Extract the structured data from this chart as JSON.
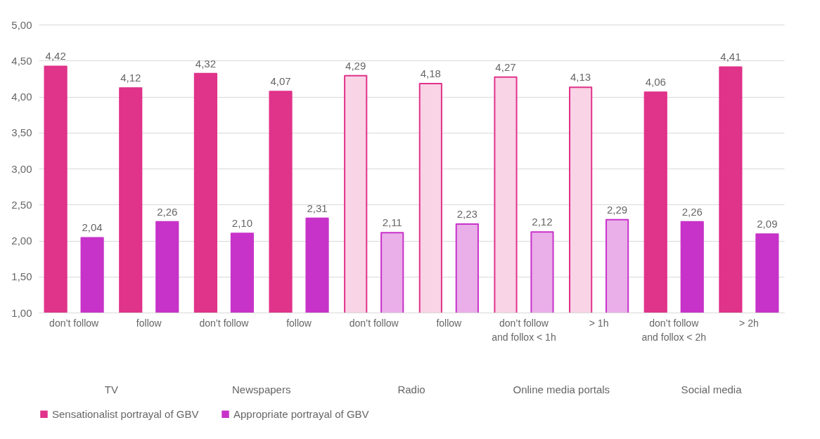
{
  "chart_data": {
    "type": "bar",
    "categories": [
      "don’t follow",
      "follow",
      "don’t follow",
      "follow",
      "don’t follow",
      "follow",
      "don’t follow\nand follox < 1h",
      "> 1h",
      "don’t follow\nand follox < 2h",
      "> 2h"
    ],
    "series": [
      {
        "name": "Sensationalist portrayal of GBV",
        "color": "#e0338a",
        "colors": [
          "#e0338a",
          "#e0338a",
          "#e0338a",
          "#e0338a",
          "#f9d3e6",
          "#f9d3e6",
          "#f9d3e6",
          "#f9d3e6",
          "#e0338a",
          "#e0338a"
        ],
        "values": [
          4.42,
          4.12,
          4.32,
          4.07,
          4.29,
          4.18,
          4.27,
          4.13,
          4.06,
          4.41
        ],
        "value_labels": [
          "4,42",
          "4,12",
          "4,32",
          "4,07",
          "4,29",
          "4,18",
          "4,27",
          "4,13",
          "4,06",
          "4,41"
        ]
      },
      {
        "name": "Appropriate portrayal of GBV",
        "color": "#c733c9",
        "colors": [
          "#c733c9",
          "#c733c9",
          "#c733c9",
          "#c733c9",
          "#eaaee9",
          "#eaaee9",
          "#eaaee9",
          "#eaaee9",
          "#c733c9",
          "#c733c9"
        ],
        "values": [
          2.04,
          2.26,
          2.1,
          2.31,
          2.11,
          2.23,
          2.12,
          2.29,
          2.26,
          2.09
        ],
        "value_labels": [
          "2,04",
          "2,26",
          "2,10",
          "2,31",
          "2,11",
          "2,23",
          "2,12",
          "2,29",
          "2,26",
          "2,09"
        ]
      }
    ],
    "ylim": [
      1,
      5
    ],
    "yticks": [
      {
        "value": 1,
        "label": "1,00"
      },
      {
        "value": 1.5,
        "label": "1,50"
      },
      {
        "value": 2,
        "label": "2,00"
      },
      {
        "value": 2.5,
        "label": "2,50"
      },
      {
        "value": 3,
        "label": "3,00"
      },
      {
        "value": 3.5,
        "label": "3,50"
      },
      {
        "value": 4,
        "label": "4,00"
      },
      {
        "value": 4.5,
        "label": "4,50"
      },
      {
        "value": 5,
        "label": "5,00"
      }
    ],
    "annotations": [
      "TV",
      "Newspapers",
      "Radio",
      "Online media portals",
      "Social media"
    ],
    "grid": "y",
    "legend": "bottom"
  }
}
